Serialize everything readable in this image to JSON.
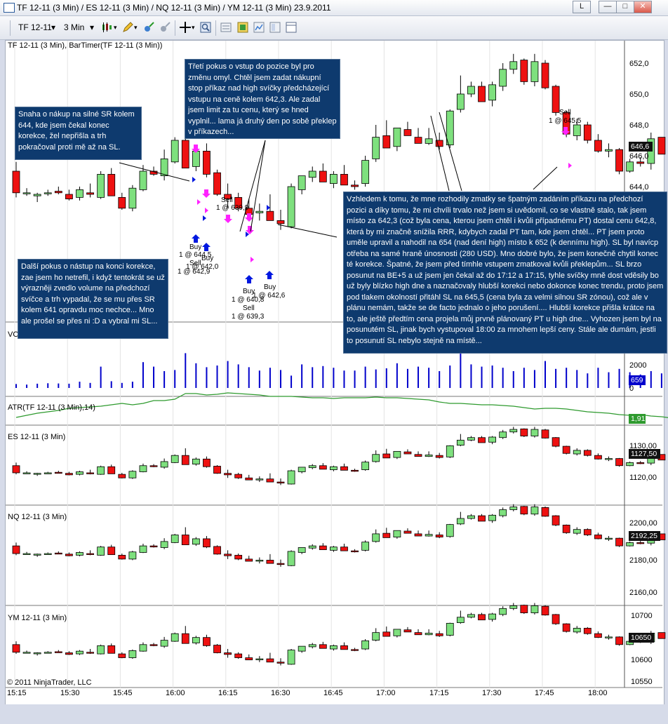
{
  "window": {
    "title": "TF 12-11 (3 Min) / ES 12-11 (3 Min) / NQ 12-11 (3 Min) / YM 12-11 (3 Min)  23.9.2011",
    "btn_l": "L"
  },
  "toolbar": {
    "instrument": "TF 12-11",
    "interval": "3 Min"
  },
  "panels": {
    "tf": {
      "label": "TF 12-11 (3 Min), BarTimer(TF 12-11 (3 Min))",
      "last": "646,6",
      "ticks": [
        "652,0",
        "650,0",
        "648,0",
        "646,0",
        "644,0"
      ]
    },
    "vol": {
      "label": "VOL",
      "last": "659",
      "ticks": [
        "2000",
        "0"
      ]
    },
    "atr": {
      "label": "ATR(TF 12-11 (3 Min),14)",
      "last": "1,91"
    },
    "es": {
      "label": "ES 12-11 (3 Min)",
      "last": "1127,50",
      "ticks": [
        "1130,00",
        "1120,00"
      ]
    },
    "nq": {
      "label": "NQ 12-11 (3 Min)",
      "last": "2192,25",
      "ticks": [
        "2200,00",
        "2180,00",
        "2160,00"
      ]
    },
    "ym": {
      "label": "YM 12-11 (3 Min)",
      "last": "10650",
      "ticks": [
        "10700",
        "10600",
        "10550"
      ]
    }
  },
  "times": [
    "15:15",
    "15:30",
    "15:45",
    "16:00",
    "16:15",
    "16:30",
    "16:45",
    "17:00",
    "17:15",
    "17:30",
    "17:45",
    "18:00"
  ],
  "copyright": "© 2011 NinjaTrader, LLC",
  "executions": {
    "sell1": "Sell",
    "sell1_v": "1 @ 639,9",
    "buy1": "Buy",
    "buy1_v": "1 @ 644,5",
    "sell2": "Sell",
    "sell2_v": "1 @ 642,0",
    "buy2": "Buy",
    "buy2_v": "1 @ 642,9",
    "buy3": "Buy",
    "buy3_v": "1 @ 640,8",
    "sell3": "Sell",
    "sell3_v": "1 @ 639,3",
    "buy4": "Buy",
    "buy4_v": "1 @ 642,6",
    "sell4": "Sell",
    "sell4_v": "1 @ 645,5"
  },
  "notes": {
    "n1": "Snaha o nákup na silné SR kolem 644, kde jsem čekal konec korekce, žel nepřišla a trh pokračoval proti mě až na SL.",
    "n2": "Třetí pokus o vstup do pozice byl pro změnu omyl. Chtěl jsem zadat nákupní stop příkaz nad high svíčky předcházející vstupu na ceně kolem 642,3. Ale zadal jsem limit za tu cenu, který se hned vyplnil... lama já druhý den po sobě překlep v příkazech...",
    "n3": "Další pokus o nástup na konci korekce, zae jsem ho netrefil, i když tentokrát se už výrazněji zvedlo volume na předchozí svíčce a trh vypadal, že se mu přes SR kolem 641 opravdu moc nechce... Mno ale prošel se přes ni :D a vybral mi SL...",
    "n4": "Vzhledem k tomu, že mne rozhodily zmatky se špatným zadáním příkazu na předchozí pozici a díky tomu, že mi chvíli trvalo než jsem si uvědomil, co se vlastně stalo, tak jsem místo za 642,3 (což byla cena, kterou jsem chtěl i kvůli případnému PT) dostal cenu 642,8, která by mi značně snížila RRR, kdybych zadal PT tam, kde jsem chtěl... PT jsem proto uměle upravil a nahodil na 654 (nad dení high) místo k 652 (k dennímu high). SL byl navícp otřeba na samé hraně únosnosti (280 USD). Mno dobré bylo, že jsem konečně chytil konec té korekce. Špatné, že jsem před tímhle vstupem zmatkoval kvůli překlepům... SL brzo posunut na BE+5 a už jsem jen čekal až do 17:12 a 17:15, tyhle svíčky mně dost vděsily bo už byly blízko high dne a naznačovaly hlubší korekci nebo dokonce konec trendu, proto jsem pod tlakem okolností přitáhl SL na 645,5 (cena byla za velmi silnou SR zónou), což ale v plánu nemám, takže se de facto jednalo o jeho porušení.... Hlubší korekce přišla krátce na to, ale ještě předtím cena projela můj prvně plánovaný PT u high dne... Vyhozen jsem byl na posunutém SL, jinak bych vystupoval 18:00 za mnohem lepší ceny. Stále ale dumám, jestli to posunutí SL nebylo stejně na místě..."
  },
  "colors": {
    "up": "#7ee07e",
    "down": "#ee1111",
    "volume": "#0000cc",
    "atr": "#2e9a2e",
    "note_bg": "#0e3a6e"
  },
  "tf_candles": [
    [
      645,
      645.6,
      643.3,
      643.6
    ],
    [
      643.6,
      643.9,
      643.4,
      643.6
    ],
    [
      643.4,
      643.6,
      643.0,
      643.5
    ],
    [
      643.6,
      643.8,
      643.4,
      643.6
    ],
    [
      643.7,
      644.0,
      643.5,
      643.6
    ],
    [
      643.5,
      643.8,
      643.1,
      643.2
    ],
    [
      643.3,
      644.0,
      643.1,
      643.8
    ],
    [
      643.6,
      644.2,
      643.3,
      643.5
    ],
    [
      643.3,
      645.0,
      643.2,
      644.8
    ],
    [
      644.8,
      645.2,
      643.7,
      643.4
    ],
    [
      643.3,
      643.6,
      642.5,
      642.6
    ],
    [
      642.6,
      644.1,
      642.4,
      643.9
    ],
    [
      643.8,
      645.4,
      643.7,
      645.0
    ],
    [
      645.0,
      645.3,
      644.7,
      644.8
    ],
    [
      644.7,
      646.4,
      644.4,
      645.8
    ],
    [
      645.6,
      647.2,
      645.5,
      647.0
    ],
    [
      647.0,
      648.4,
      646.5,
      645.2
    ],
    [
      645.3,
      646.6,
      645.0,
      646.3
    ],
    [
      646.3,
      646.8,
      644.6,
      644.8
    ],
    [
      644.9,
      645.1,
      643.4,
      643.5
    ],
    [
      643.5,
      644.2,
      642.6,
      643.2
    ],
    [
      643.3,
      643.6,
      642.4,
      642.6
    ],
    [
      642.6,
      643.2,
      642.2,
      642.2
    ],
    [
      642.3,
      642.9,
      641.8,
      642.4
    ],
    [
      642.4,
      643.5,
      641.9,
      641.8
    ],
    [
      641.8,
      642.5,
      641.2,
      641.6
    ],
    [
      641.4,
      644.2,
      641.3,
      644.0
    ],
    [
      643.8,
      644.6,
      643.5,
      644.7
    ],
    [
      644.6,
      645.3,
      644.3,
      645.0
    ],
    [
      645.0,
      645.5,
      644.6,
      644.3
    ],
    [
      644.2,
      645.0,
      643.9,
      644.8
    ],
    [
      644.8,
      645.4,
      644.5,
      644.1
    ],
    [
      644.1,
      644.4,
      643.8,
      644.0
    ],
    [
      644.2,
      646.0,
      644.0,
      645.7
    ],
    [
      645.8,
      648.0,
      645.6,
      647.2
    ],
    [
      647.3,
      648.3,
      646.8,
      646.5
    ],
    [
      646.6,
      647.6,
      646.3,
      647.8
    ],
    [
      647.7,
      648.2,
      647.3,
      647.3
    ],
    [
      647.2,
      647.8,
      646.8,
      646.8
    ],
    [
      646.8,
      647.8,
      646.7,
      647.1
    ],
    [
      647.0,
      647.5,
      646.4,
      646.6
    ],
    [
      646.7,
      649.0,
      646.5,
      648.9
    ],
    [
      649.0,
      651.2,
      648.8,
      650.0
    ],
    [
      650.0,
      650.8,
      649.8,
      650.5
    ],
    [
      650.5,
      650.8,
      649.6,
      649.5
    ],
    [
      649.6,
      650.8,
      649.2,
      650.6
    ],
    [
      650.5,
      652.0,
      650.2,
      651.6
    ],
    [
      651.6,
      652.6,
      651.3,
      652.1
    ],
    [
      652.2,
      652.3,
      650.6,
      650.8
    ],
    [
      650.8,
      652.6,
      650.5,
      652.1
    ],
    [
      652.0,
      652.2,
      650.3,
      650.4
    ],
    [
      650.5,
      650.6,
      648.6,
      648.8
    ],
    [
      648.8,
      648.9,
      647.2,
      647.4
    ],
    [
      647.3,
      648.4,
      647.0,
      648.0
    ],
    [
      648.0,
      648.2,
      646.8,
      647.0
    ],
    [
      647.0,
      647.4,
      646.2,
      646.3
    ],
    [
      646.3,
      646.8,
      645.9,
      646.4
    ],
    [
      646.4,
      646.5,
      644.8,
      645.0
    ],
    [
      645.0,
      645.8,
      644.9,
      645.6
    ],
    [
      645.6,
      645.9,
      645.3,
      645.5
    ],
    [
      645.5,
      647.5,
      645.1,
      647.1
    ],
    [
      647.2,
      647.2,
      646.1,
      646.1
    ],
    [
      646.1,
      646.8,
      645.7,
      646.6
    ]
  ],
  "vol_values": [
    350,
    300,
    380,
    420,
    400,
    380,
    560,
    450,
    1900,
    600,
    450,
    560,
    2300,
    1900,
    1500,
    1600,
    3100,
    2200,
    1850,
    2000,
    2400,
    2100,
    1850,
    1550,
    1800,
    1600,
    1100,
    2100,
    1850,
    1950,
    1800,
    1550,
    1550,
    1900,
    1650,
    1750,
    2200,
    1700,
    1900,
    1800,
    1500,
    2000,
    3100,
    2100,
    1900,
    2000,
    1800,
    1500,
    1800,
    1600,
    2400,
    1700,
    1800,
    1600,
    1300,
    1800,
    1400,
    1700,
    1400,
    1200,
    1500,
    1300,
    659
  ],
  "atr_values": [
    1.92,
    1.95,
    1.98,
    2.0,
    2.02,
    2.05,
    2.06,
    2.07,
    2.08,
    2.1,
    2.12,
    2.1,
    2.12,
    2.16,
    2.16,
    2.18,
    2.26,
    2.26,
    2.24,
    2.25,
    2.27,
    2.26,
    2.25,
    2.24,
    2.22,
    2.22,
    2.22,
    2.21,
    2.2,
    2.2,
    2.19,
    2.2,
    2.2,
    2.2,
    2.21,
    2.2,
    2.2,
    2.19,
    2.18,
    2.17,
    2.14,
    2.12,
    2.12,
    2.11,
    2.1,
    2.1,
    2.09,
    2.08,
    2.06,
    2.04,
    2.05,
    2.05,
    2.04,
    2.02,
    2.0,
    1.99,
    1.98,
    1.96,
    1.95,
    1.96,
    1.94,
    1.93,
    1.91
  ]
}
